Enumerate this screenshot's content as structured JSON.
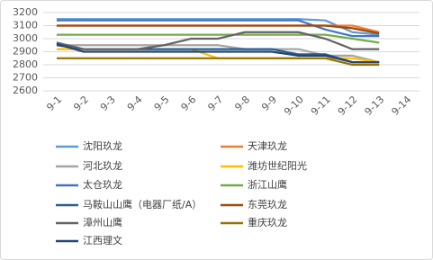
{
  "chart_data": {
    "type": "line",
    "categories": [
      "9-1",
      "9-2",
      "9-3",
      "9-4",
      "9-5",
      "9-6",
      "9-7",
      "9-8",
      "9-9",
      "9-10",
      "9-11",
      "9-12",
      "9-13",
      "9-14"
    ],
    "ylim": [
      2600,
      3200
    ],
    "yticks": [
      2600,
      2700,
      2800,
      2900,
      3000,
      3100,
      3200
    ],
    "grid": true,
    "series": [
      {
        "name": "沈阳玖龙",
        "color": "#5b9bd5",
        "values": [
          3150,
          3150,
          3150,
          3150,
          3150,
          3150,
          3150,
          3150,
          3150,
          3150,
          3140,
          3050,
          3030,
          null
        ]
      },
      {
        "name": "天津玖龙",
        "color": "#ed7d31",
        "values": [
          3100,
          3100,
          3100,
          3100,
          3100,
          3100,
          3100,
          3100,
          3100,
          3100,
          3100,
          3100,
          3050,
          null
        ]
      },
      {
        "name": "河北玖龙",
        "color": "#a5a5a5",
        "values": [
          2950,
          2950,
          2950,
          2950,
          2950,
          2950,
          2950,
          2920,
          2920,
          2920,
          2870,
          2870,
          2820,
          null
        ]
      },
      {
        "name": "潍坊世纪阳光",
        "color": "#ffc000",
        "values": [
          2920,
          2920,
          2920,
          2920,
          2920,
          2920,
          2850,
          2850,
          2850,
          2850,
          2850,
          2850,
          2820,
          null
        ]
      },
      {
        "name": "太仓玖龙",
        "color": "#4472c4",
        "values": [
          3140,
          3140,
          3140,
          3140,
          3140,
          3140,
          3140,
          3140,
          3140,
          3140,
          3070,
          3020,
          3020,
          null
        ]
      },
      {
        "name": "浙江山鹰",
        "color": "#70ad47",
        "values": [
          3030,
          3030,
          3030,
          3030,
          3030,
          3030,
          3030,
          3030,
          3030,
          3030,
          3030,
          3000,
          2970,
          null
        ]
      },
      {
        "name": "马鞍山山鹰（电器厂纸/A）",
        "color": "#255e91",
        "values": [
          2950,
          2920,
          2920,
          2920,
          2920,
          2920,
          2920,
          2920,
          2920,
          2880,
          2880,
          2820,
          2820,
          null
        ]
      },
      {
        "name": "东莞玖龙",
        "color": "#9e480e",
        "values": [
          3100,
          3100,
          3100,
          3100,
          3100,
          3100,
          3100,
          3100,
          3100,
          3100,
          3100,
          3080,
          3040,
          null
        ]
      },
      {
        "name": "漳州山鹰",
        "color": "#636363",
        "values": [
          2970,
          2920,
          2920,
          2920,
          2950,
          3000,
          3000,
          3050,
          3050,
          3050,
          3000,
          2920,
          2920,
          null
        ]
      },
      {
        "name": "重庆玖龙",
        "color": "#997300",
        "values": [
          2850,
          2850,
          2850,
          2850,
          2850,
          2850,
          2850,
          2850,
          2850,
          2850,
          2850,
          2800,
          2800,
          null
        ]
      },
      {
        "name": "江西理文",
        "color": "#264478",
        "values": [
          2960,
          2900,
          2900,
          2900,
          2900,
          2900,
          2900,
          2900,
          2900,
          2870,
          2870,
          2820,
          2820,
          null
        ]
      }
    ]
  }
}
